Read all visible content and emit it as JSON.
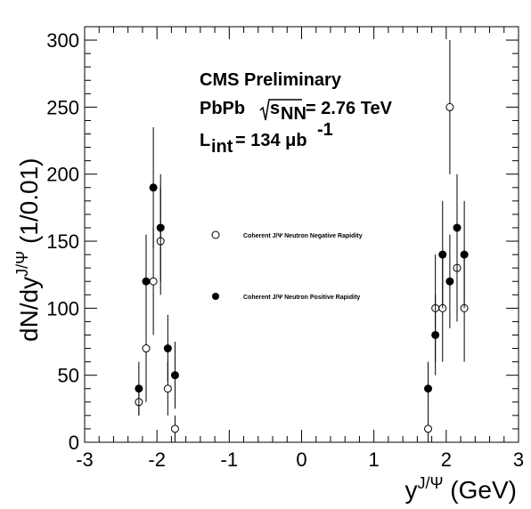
{
  "chart_data": {
    "type": "scatter",
    "xlabel": "y^{J/Ψ} (GeV)",
    "ylabel": "dN/dy^{J/Ψ} (1/0.01)",
    "xlim": [
      -3,
      3
    ],
    "ylim": [
      0,
      310
    ],
    "x_ticks": [
      "-3",
      "-2",
      "-1",
      "0",
      "1",
      "2",
      "3"
    ],
    "y_ticks": [
      "0",
      "50",
      "100",
      "150",
      "200",
      "250",
      "300"
    ],
    "grid": false,
    "legend_position": "center",
    "annotations": {
      "line1": "CMS Preliminary",
      "line2": "PbPb √s_NN = 2.76 TeV",
      "line3": "L_int = 134 μb^-1"
    },
    "series": [
      {
        "name": "Coherent J/Ψ Neutron Negative Rapidity",
        "marker": "open-circle",
        "points": [
          {
            "x": -2.25,
            "y": 30,
            "err": 10
          },
          {
            "x": -2.15,
            "y": 70,
            "err": 40
          },
          {
            "x": -2.05,
            "y": 120,
            "err": 40
          },
          {
            "x": -1.95,
            "y": 150,
            "err": 40
          },
          {
            "x": -1.85,
            "y": 40,
            "err": 20
          },
          {
            "x": -1.75,
            "y": 10,
            "err": 10
          },
          {
            "x": 1.75,
            "y": 10,
            "err": 10
          },
          {
            "x": 1.85,
            "y": 100,
            "err": 40
          },
          {
            "x": 1.95,
            "y": 100,
            "err": 40
          },
          {
            "x": 2.05,
            "y": 250,
            "err": 50
          },
          {
            "x": 2.15,
            "y": 130,
            "err": 40
          },
          {
            "x": 2.25,
            "y": 100,
            "err": 40
          }
        ]
      },
      {
        "name": "Coherent J/Ψ Neutron Positive Rapidity",
        "marker": "filled-circle",
        "points": [
          {
            "x": -2.25,
            "y": 40,
            "err": 20
          },
          {
            "x": -2.15,
            "y": 120,
            "err": 35
          },
          {
            "x": -2.05,
            "y": 190,
            "err": 45
          },
          {
            "x": -1.95,
            "y": 160,
            "err": 40
          },
          {
            "x": -1.85,
            "y": 70,
            "err": 25
          },
          {
            "x": -1.75,
            "y": 50,
            "err": 25
          },
          {
            "x": 1.75,
            "y": 40,
            "err": 20
          },
          {
            "x": 1.85,
            "y": 80,
            "err": 30
          },
          {
            "x": 1.95,
            "y": 140,
            "err": 40
          },
          {
            "x": 2.05,
            "y": 120,
            "err": 35
          },
          {
            "x": 2.15,
            "y": 160,
            "err": 40
          },
          {
            "x": 2.25,
            "y": 140,
            "err": 40
          }
        ]
      }
    ]
  }
}
